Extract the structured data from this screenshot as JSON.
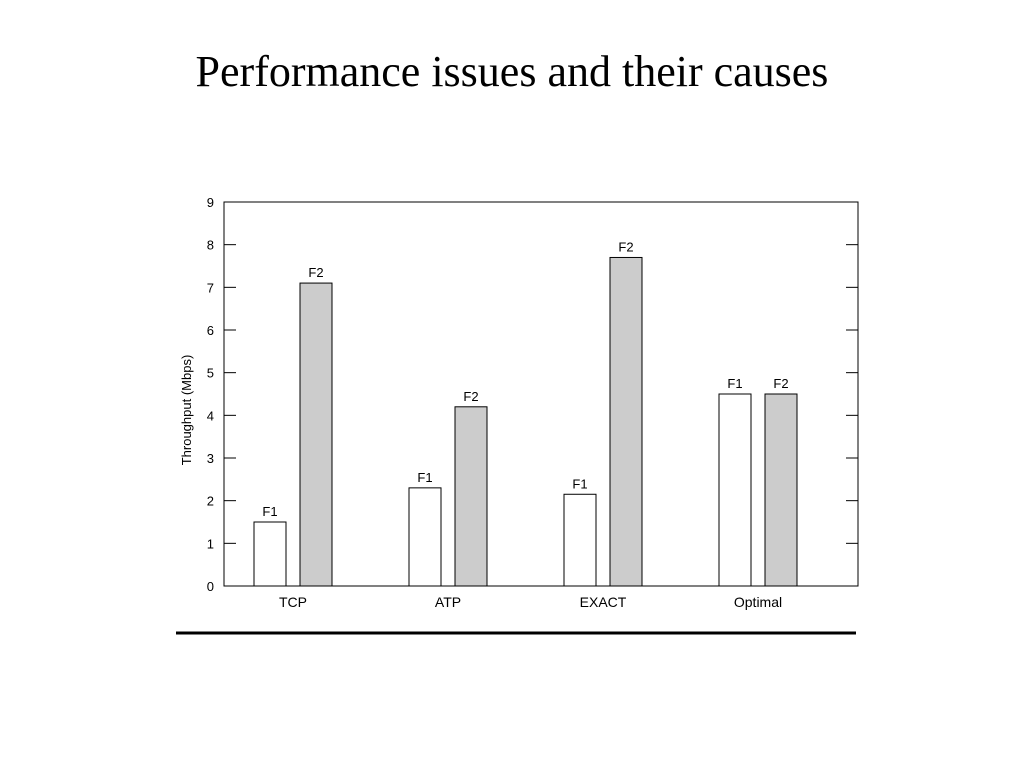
{
  "slide": {
    "title": "Performance issues and their causes"
  },
  "chart_data": {
    "type": "bar",
    "categories": [
      "TCP",
      "ATP",
      "EXACT",
      "Optimal"
    ],
    "series": [
      {
        "name": "F1",
        "values": [
          1.5,
          2.3,
          2.15,
          4.5
        ],
        "color": "#ffffff"
      },
      {
        "name": "F2",
        "values": [
          7.1,
          4.2,
          7.7,
          4.5
        ],
        "color": "#cccccc"
      }
    ],
    "ylabel": "Throughput (Mbps)",
    "xlabel": "",
    "ylim": [
      0,
      9
    ],
    "yticks": [
      "0",
      "1",
      "2",
      "3",
      "4",
      "5",
      "6",
      "7",
      "8",
      "9"
    ],
    "grid": false,
    "legend": "none"
  }
}
